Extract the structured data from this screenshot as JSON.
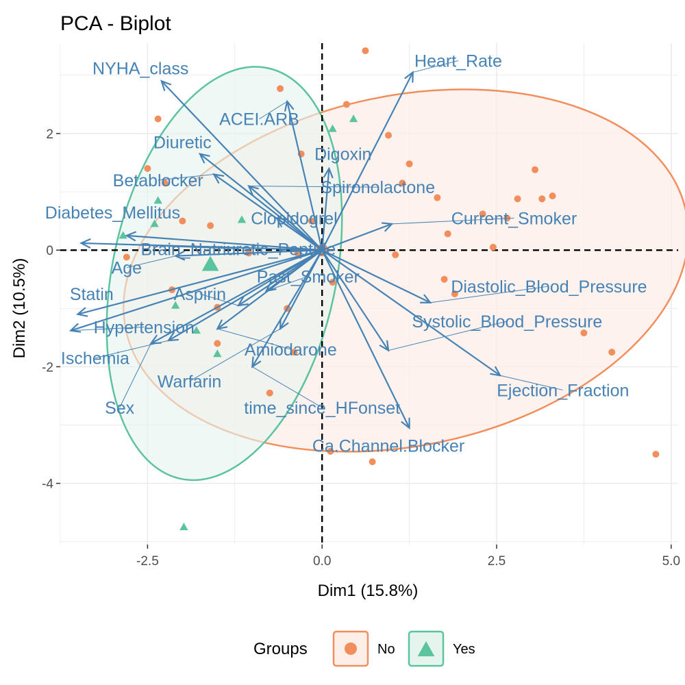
{
  "chart_data": {
    "type": "scatter",
    "title": "PCA - Biplot",
    "xlabel": "Dim1 (15.8%)",
    "ylabel": "Dim2 (10.5%)",
    "xlim": [
      -3.75,
      5.1
    ],
    "ylim": [
      -5.05,
      3.55
    ],
    "x_ticks": [
      -2.5,
      0.0,
      2.5,
      5.0
    ],
    "x_tick_labels": [
      "-2.5",
      "0.0",
      "2.5",
      "5.0"
    ],
    "y_ticks": [
      -4,
      -2,
      0,
      2
    ],
    "y_tick_labels": [
      "-4",
      "-2",
      "0",
      "2"
    ],
    "grid": true,
    "legend": {
      "title": "Groups",
      "position": "bottom",
      "entries": [
        {
          "label": "No",
          "color": "#f28e5c",
          "shape": "circle"
        },
        {
          "label": "Yes",
          "color": "#5cc3a0",
          "shape": "triangle"
        }
      ]
    },
    "colors": {
      "No": "#f28e5c",
      "Yes": "#5cc3a0",
      "arrows": "#4682b4",
      "ellipse_no_fill": "#fdeee8",
      "ellipse_yes_fill": "#e6f4ee"
    },
    "series": [
      {
        "name": "No",
        "points": [
          [
            0.62,
            3.42
          ],
          [
            -0.6,
            2.77
          ],
          [
            -2.35,
            2.25
          ],
          [
            0.35,
            2.5
          ],
          [
            0.95,
            1.97
          ],
          [
            -0.3,
            1.65
          ],
          [
            1.25,
            1.48
          ],
          [
            1.15,
            1.15
          ],
          [
            -2.5,
            1.4
          ],
          [
            -2.25,
            1.15
          ],
          [
            1.65,
            0.9
          ],
          [
            2.8,
            0.88
          ],
          [
            3.05,
            1.38
          ],
          [
            3.15,
            0.88
          ],
          [
            3.3,
            0.93
          ],
          [
            2.3,
            0.62
          ],
          [
            2.65,
            0.55
          ],
          [
            -0.15,
            0.5
          ],
          [
            -2.0,
            0.5
          ],
          [
            -1.6,
            0.42
          ],
          [
            1.8,
            0.28
          ],
          [
            2.45,
            0.05
          ],
          [
            1.05,
            -0.08
          ],
          [
            -0.35,
            -0.05
          ],
          [
            -2.8,
            -0.12
          ],
          [
            -1.05,
            -0.05
          ],
          [
            1.75,
            -0.5
          ],
          [
            1.9,
            -0.75
          ],
          [
            -2.15,
            -0.68
          ],
          [
            -1.5,
            -0.98
          ],
          [
            -0.5,
            -1.0
          ],
          [
            0.15,
            -0.55
          ],
          [
            -1.5,
            -1.6
          ],
          [
            -0.4,
            -1.75
          ],
          [
            3.75,
            -1.42
          ],
          [
            4.15,
            -1.75
          ],
          [
            -0.75,
            -2.45
          ],
          [
            0.12,
            -3.45
          ],
          [
            0.72,
            -3.63
          ],
          [
            4.78,
            -3.5
          ]
        ]
      },
      {
        "name": "Yes",
        "points": [
          [
            0.45,
            2.25
          ],
          [
            0.15,
            2.08
          ],
          [
            -2.35,
            0.85
          ],
          [
            -1.15,
            0.52
          ],
          [
            -2.4,
            0.45
          ],
          [
            -2.85,
            0.25
          ],
          [
            -1.55,
            -0.3
          ],
          [
            -2.1,
            -0.95
          ],
          [
            -1.8,
            -1.38
          ],
          [
            -1.5,
            -1.78
          ],
          [
            -1.98,
            -4.75
          ]
        ]
      }
    ],
    "group_centers": [
      {
        "name": "No",
        "x": 0.0,
        "y": 0.0
      },
      {
        "name": "Yes",
        "x": -1.6,
        "y": -0.25
      }
    ],
    "ellipses": [
      {
        "name": "No",
        "cx": 1.2,
        "cy": -0.35,
        "rx": 4.1,
        "ry": 3.0,
        "angle_deg": -12
      },
      {
        "name": "Yes",
        "cx": -1.4,
        "cy": -0.4,
        "rx": 1.6,
        "ry": 3.6,
        "angle_deg": 12
      }
    ],
    "variables": [
      {
        "name": "NYHA_class",
        "x": -2.3,
        "y": 2.9
      },
      {
        "name": "Heart_Rate",
        "x": 1.3,
        "y": 3.05
      },
      {
        "name": "ACEI.ARB",
        "x": -0.5,
        "y": 2.55
      },
      {
        "name": "Diuretic",
        "x": -1.75,
        "y": 1.65
      },
      {
        "name": "Digoxin",
        "x": 0.1,
        "y": 1.4
      },
      {
        "name": "Betablocker",
        "x": -1.55,
        "y": 1.3
      },
      {
        "name": "Spironolactone",
        "x": -1.05,
        "y": 1.1
      },
      {
        "name": "Clopidogrel",
        "x": -0.65,
        "y": 0.55
      },
      {
        "name": "Current_Smoker",
        "x": 1.0,
        "y": 0.45
      },
      {
        "name": "Diabetes_Mellitus",
        "x": -2.8,
        "y": 0.25
      },
      {
        "name": "Brain_Natriuretic_Peptide",
        "x": -3.45,
        "y": 0.12
      },
      {
        "name": "Age",
        "x": -2.1,
        "y": -0.1
      },
      {
        "name": "Past_Smoker",
        "x": -0.8,
        "y": -0.7
      },
      {
        "name": "Diastolic_Blood_Pressure",
        "x": 1.55,
        "y": -0.9
      },
      {
        "name": "Statin",
        "x": -3.5,
        "y": -1.1
      },
      {
        "name": "Aspirin",
        "x": -1.2,
        "y": -0.95
      },
      {
        "name": "Systolic_Blood_Pressure",
        "x": 0.95,
        "y": -1.72
      },
      {
        "name": "Hypertension",
        "x": -3.6,
        "y": -1.38
      },
      {
        "name": "Ischemia",
        "x": -2.2,
        "y": -1.55
      },
      {
        "name": "Amiodarone",
        "x": -1.5,
        "y": -1.35
      },
      {
        "name": "Warfarin",
        "x": -0.6,
        "y": -1.35
      },
      {
        "name": "Sex",
        "x": -2.45,
        "y": -1.6
      },
      {
        "name": "time_since_HFonset",
        "x": -1.0,
        "y": -2.0
      },
      {
        "name": "Ejection_Fraction",
        "x": 2.55,
        "y": -2.15
      },
      {
        "name": "Ca.Channel.Blocker",
        "x": 1.25,
        "y": -3.05
      }
    ],
    "variable_labels": [
      {
        "name": "NYHA_class",
        "x": -2.6,
        "y": 3.12
      },
      {
        "name": "Heart_Rate",
        "x": 1.95,
        "y": 3.25
      },
      {
        "name": "ACEI.ARB",
        "x": -0.9,
        "y": 2.25
      },
      {
        "name": "Diuretic",
        "x": -2.0,
        "y": 1.85
      },
      {
        "name": "Digoxin",
        "x": 0.3,
        "y": 1.65
      },
      {
        "name": "Betablocker",
        "x": -2.35,
        "y": 1.2
      },
      {
        "name": "Spironolactone",
        "x": 0.8,
        "y": 1.08
      },
      {
        "name": "Clopidogrel",
        "x": -0.4,
        "y": 0.55
      },
      {
        "name": "Current_Smoker",
        "x": 2.75,
        "y": 0.55
      },
      {
        "name": "Diabetes_Mellitus",
        "x": -3.0,
        "y": 0.65
      },
      {
        "name": "Brain_Natriuretic_Peptide",
        "x": -1.2,
        "y": 0.02
      },
      {
        "name": "Age",
        "x": -2.8,
        "y": -0.3
      },
      {
        "name": "Past_Smoker",
        "x": -0.2,
        "y": -0.45
      },
      {
        "name": "Diastolic_Blood_Pressure",
        "x": 3.25,
        "y": -0.62
      },
      {
        "name": "Statin",
        "x": -3.3,
        "y": -0.75
      },
      {
        "name": "Aspirin",
        "x": -1.75,
        "y": -0.75
      },
      {
        "name": "Systolic_Blood_Pressure",
        "x": 2.65,
        "y": -1.22
      },
      {
        "name": "Hypertension",
        "x": -2.55,
        "y": -1.32
      },
      {
        "name": "Ischemia",
        "x": -3.25,
        "y": -1.85
      },
      {
        "name": "Amiodarone",
        "x": -0.45,
        "y": -1.7
      },
      {
        "name": "Warfarin",
        "x": -1.9,
        "y": -2.25
      },
      {
        "name": "Sex",
        "x": -2.9,
        "y": -2.7
      },
      {
        "name": "time_since_HFonset",
        "x": 0.0,
        "y": -2.7
      },
      {
        "name": "Ejection_Fraction",
        "x": 3.45,
        "y": -2.4
      },
      {
        "name": "Ca.Channel.Blocker",
        "x": 0.95,
        "y": -3.35
      }
    ]
  }
}
